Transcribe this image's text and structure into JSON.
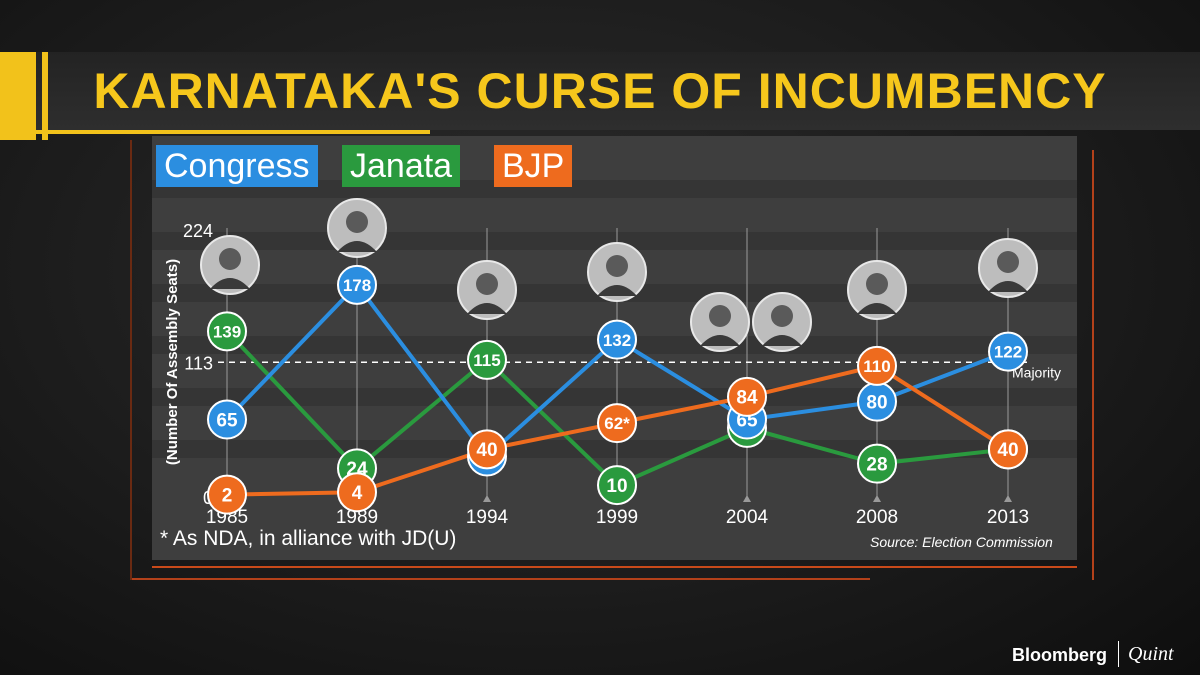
{
  "title": "KARNATAKA'S CURSE OF INCUMBENCY",
  "legend": [
    {
      "label": "Congress",
      "color": "#2b8ee0"
    },
    {
      "label": "Janata",
      "color": "#2a9a3e"
    },
    {
      "label": "BJP",
      "color": "#ee6b1e"
    }
  ],
  "footnote": "* As NDA, in alliance with JD(U)",
  "source": "Source: Election Commission",
  "brand": {
    "left": "Bloomberg",
    "right": "Quint"
  },
  "chart_data": {
    "type": "line",
    "ylabel": "(Number Of Assembly Seats)",
    "ylim": [
      0,
      224
    ],
    "y_ticks": [
      "0",
      "113",
      "224"
    ],
    "x": [
      "1985",
      "1989",
      "1994",
      "1999",
      "2004",
      "2008",
      "2013"
    ],
    "majority": {
      "value": 113,
      "label": "Majority"
    },
    "series": [
      {
        "name": "Congress",
        "color": "#2b8ee0",
        "values": [
          65,
          178,
          34,
          132,
          65,
          80,
          122
        ],
        "labels": [
          "65",
          "178",
          "34",
          "132",
          "65",
          "80",
          "122"
        ]
      },
      {
        "name": "Janata",
        "color": "#2a9a3e",
        "values": [
          139,
          24,
          115,
          10,
          58,
          28,
          40
        ],
        "labels": [
          "139",
          "24",
          "115",
          "10",
          "58",
          "28",
          "40"
        ]
      },
      {
        "name": "BJP",
        "color": "#ee6b1e",
        "values": [
          2,
          4,
          40,
          62,
          84,
          110,
          40
        ],
        "labels": [
          "2",
          "4",
          "40",
          "62*",
          "84",
          "110",
          "40"
        ]
      }
    ]
  }
}
